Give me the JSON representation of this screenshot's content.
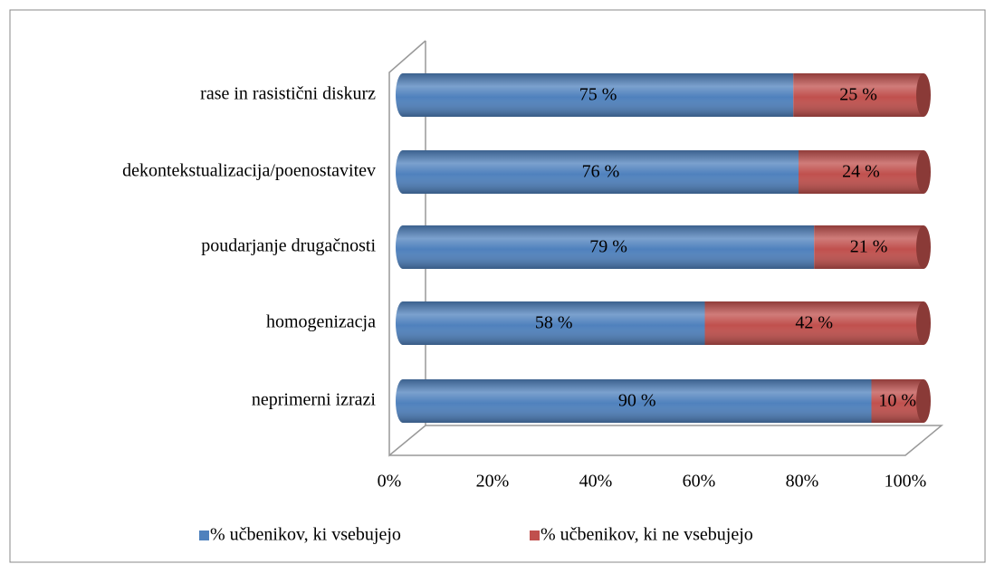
{
  "chart_data": {
    "type": "bar",
    "orientation": "horizontal",
    "stacked": true,
    "categories": [
      "rase in rasistični diskurz",
      "dekontekstualizacija/poenostavitev",
      "poudarjanje drugačnosti",
      "homogenizacja",
      "neprimerni izrazi"
    ],
    "series": [
      {
        "name": "% učbenikov, ki vsebujejo",
        "color": "#4f81bd",
        "values": [
          75,
          76,
          79,
          58,
          90
        ],
        "value_labels": [
          "75 %",
          "76 %",
          "79 %",
          "58 %",
          "90 %"
        ]
      },
      {
        "name": "% učbenikov, ki ne vsebujejo",
        "color": "#c0504d",
        "values": [
          25,
          24,
          21,
          42,
          10
        ],
        "value_labels": [
          "25 %",
          "24 %",
          "21 %",
          "42 %",
          "10 %"
        ]
      }
    ],
    "xlim": [
      0,
      100
    ],
    "xticks": [
      {
        "value": 0,
        "label": "0%"
      },
      {
        "value": 20,
        "label": "20%"
      },
      {
        "value": 40,
        "label": "40%"
      },
      {
        "value": 60,
        "label": "60%"
      },
      {
        "value": 80,
        "label": "80%"
      },
      {
        "value": 100,
        "label": "100%"
      }
    ],
    "legend": "bottom",
    "grid": false
  }
}
